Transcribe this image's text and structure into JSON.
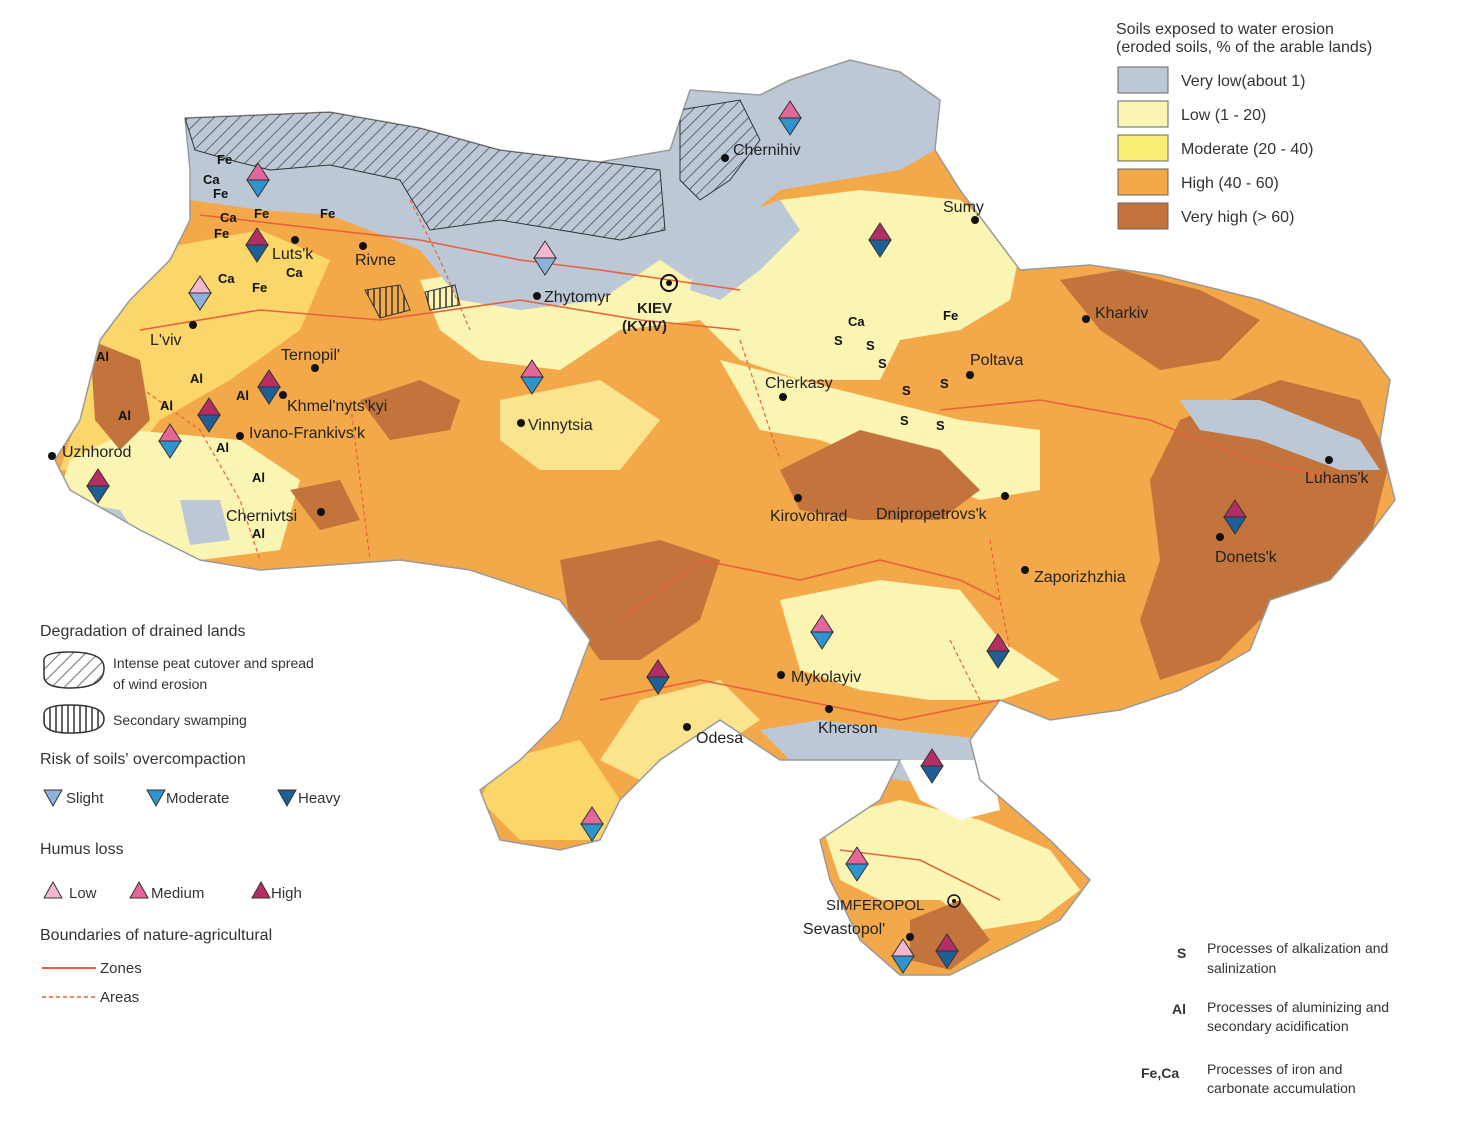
{
  "erosion_legend": {
    "title_line1": "Soils exposed to water erosion",
    "title_line2": "(eroded soils, % of the arable lands)",
    "classes": [
      {
        "label": "Very low(about 1)",
        "color": "#bcc8d6"
      },
      {
        "label": "Low (1 - 20)",
        "color": "#fbf5b4"
      },
      {
        "label": "Moderate (20 - 40)",
        "color": "#fbee74"
      },
      {
        "label": "High (40 - 60)",
        "color": "#f3a94a"
      },
      {
        "label": "Very high (> 60)",
        "color": "#c2743c"
      }
    ]
  },
  "drained_lands": {
    "title": "Degradation of drained lands",
    "peat_line1": "Intense peat cutover and spread",
    "peat_line2": "of wind erosion",
    "swamping": "Secondary swamping"
  },
  "overcompaction": {
    "title": "Risk of soils' overcompaction",
    "levels": [
      {
        "label": "Slight",
        "color": "#8fb2dc"
      },
      {
        "label": "Moderate",
        "color": "#2f93cc"
      },
      {
        "label": "Heavy",
        "color": "#1e5f96"
      }
    ]
  },
  "humus": {
    "title": "Humus loss",
    "levels": [
      {
        "label": "Low",
        "color": "#f3b7cf"
      },
      {
        "label": "Medium",
        "color": "#e4669a"
      },
      {
        "label": "High",
        "color": "#b52e63"
      }
    ]
  },
  "boundaries": {
    "title": "Boundaries of nature-agricultural",
    "zones": "Zones",
    "areas": "Areas",
    "color": "#e8613a"
  },
  "processes": [
    {
      "symbol": "S",
      "line1": "Processes of alkalization and",
      "line2": "salinization"
    },
    {
      "symbol": "Al",
      "line1": "Processes of aluminizing and",
      "line2": "secondary acidification"
    },
    {
      "symbol": "Fe,Ca",
      "line1": "Processes of iron and",
      "line2": "carbonate accumulation"
    }
  ],
  "cities": [
    {
      "name": "Chernihiv"
    },
    {
      "name": "Sumy"
    },
    {
      "name": "Luts'k"
    },
    {
      "name": "Rivne"
    },
    {
      "name": "Zhytomyr"
    },
    {
      "name": "KIEV"
    },
    {
      "name": "(KYIV)"
    },
    {
      "name": "Kharkiv"
    },
    {
      "name": "L'viv"
    },
    {
      "name": "Ternopil'"
    },
    {
      "name": "Poltava"
    },
    {
      "name": "Cherkasy"
    },
    {
      "name": "Khmel'nyts'kyi"
    },
    {
      "name": "Ivano-Frankivs'k"
    },
    {
      "name": "Vinnytsia"
    },
    {
      "name": "Uzhhorod"
    },
    {
      "name": "Luhans'k"
    },
    {
      "name": "Chernivtsi"
    },
    {
      "name": "Kirovohrad"
    },
    {
      "name": "Dnipropetrovs'k"
    },
    {
      "name": "Donets'k"
    },
    {
      "name": "Zaporizhzhia"
    },
    {
      "name": "Mykolayiv"
    },
    {
      "name": "Kherson"
    },
    {
      "name": "Odesa"
    },
    {
      "name": "SIMFEROPOL"
    },
    {
      "name": "Sevastopol'"
    }
  ],
  "process_marks": [
    "Fe",
    "Ca",
    "Al",
    "S"
  ]
}
